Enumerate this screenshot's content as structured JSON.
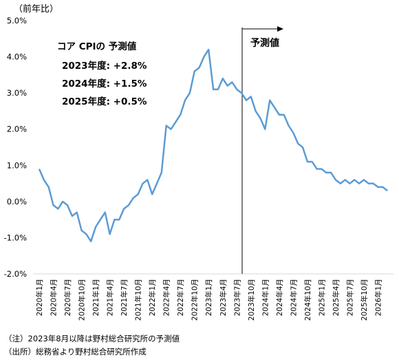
{
  "chart_data": {
    "type": "line",
    "ylabel": "（前年比）",
    "ylim": [
      -2.0,
      5.0
    ],
    "y_ticks": [
      "5.0%",
      "4.0%",
      "3.0%",
      "2.0%",
      "1.0%",
      "0.0%",
      "-1.0%",
      "-2.0%"
    ],
    "y_tick_values": [
      5.0,
      4.0,
      3.0,
      2.0,
      1.0,
      0.0,
      -1.0,
      -2.0
    ],
    "x_start": "2020-01",
    "x_tick_labels": [
      "2020年1月",
      "2020年4月",
      "2020年7月",
      "2020年10月",
      "2021年1月",
      "2021年4月",
      "2021年7月",
      "2021年10月",
      "2022年1月",
      "2022年4月",
      "2022年7月",
      "2022年10月",
      "2023年1月",
      "2023年4月",
      "2023年7月",
      "2023年10月",
      "2024年1月",
      "2024年4月",
      "2024年7月",
      "2024年10月",
      "2025年1月",
      "2025年4月",
      "2025年7月",
      "2025年10月",
      "2026年1月"
    ],
    "grid": false,
    "forecast_start": "2023年8月",
    "forecast_label": "予測値",
    "line_color": "#5b9bd5",
    "series": [
      {
        "x": [
          "2020-01",
          "2020-02",
          "2020-03",
          "2020-04",
          "2020-05",
          "2020-06",
          "2020-07",
          "2020-08",
          "2020-09",
          "2020-10",
          "2020-11",
          "2020-12",
          "2021-01",
          "2021-02",
          "2021-03",
          "2021-04",
          "2021-05",
          "2021-06",
          "2021-07",
          "2021-08",
          "2021-09",
          "2021-10",
          "2021-11",
          "2021-12",
          "2022-01",
          "2022-02",
          "2022-03",
          "2022-04",
          "2022-05",
          "2022-06",
          "2022-07",
          "2022-08",
          "2022-09",
          "2022-10",
          "2022-11",
          "2022-12",
          "2023-01",
          "2023-02",
          "2023-03",
          "2023-04",
          "2023-05",
          "2023-06",
          "2023-07",
          "2023-08",
          "2023-09",
          "2023-10",
          "2023-11",
          "2023-12",
          "2024-01",
          "2024-02",
          "2024-03",
          "2024-04",
          "2024-05",
          "2024-06",
          "2024-07",
          "2024-08",
          "2024-09",
          "2024-10",
          "2024-11",
          "2024-12",
          "2025-01",
          "2025-02",
          "2025-03",
          "2025-04",
          "2025-05",
          "2025-06",
          "2025-07",
          "2025-08",
          "2025-09",
          "2025-10",
          "2025-11",
          "2025-12",
          "2026-01",
          "2026-02",
          "2026-03"
        ],
        "values": [
          0.9,
          0.6,
          0.4,
          -0.1,
          -0.2,
          0.0,
          -0.1,
          -0.4,
          -0.3,
          -0.8,
          -0.9,
          -1.1,
          -0.7,
          -0.5,
          -0.3,
          -0.9,
          -0.5,
          -0.5,
          -0.2,
          -0.1,
          0.1,
          0.2,
          0.5,
          0.6,
          0.2,
          0.5,
          0.8,
          2.1,
          2.0,
          2.2,
          2.4,
          2.8,
          3.0,
          3.6,
          3.7,
          4.0,
          4.2,
          3.1,
          3.1,
          3.4,
          3.2,
          3.3,
          3.1,
          3.0,
          2.8,
          2.9,
          2.5,
          2.3,
          2.0,
          2.8,
          2.6,
          2.4,
          2.4,
          2.1,
          1.9,
          1.6,
          1.5,
          1.1,
          1.1,
          0.9,
          0.9,
          0.8,
          0.8,
          0.6,
          0.5,
          0.6,
          0.5,
          0.6,
          0.5,
          0.6,
          0.5,
          0.5,
          0.4,
          0.4,
          0.3
        ]
      }
    ],
    "annotation": {
      "heading": "コア CPIの 予測値",
      "lines": [
        "2023年度: +2.8%",
        "2024年度: +1.5%",
        "2025年度: +0.5%"
      ]
    }
  },
  "notes": [
    "（注）2023年8月以降は野村総合研究所の予測値",
    "（出所）総務省より野村総合研究所作成"
  ]
}
